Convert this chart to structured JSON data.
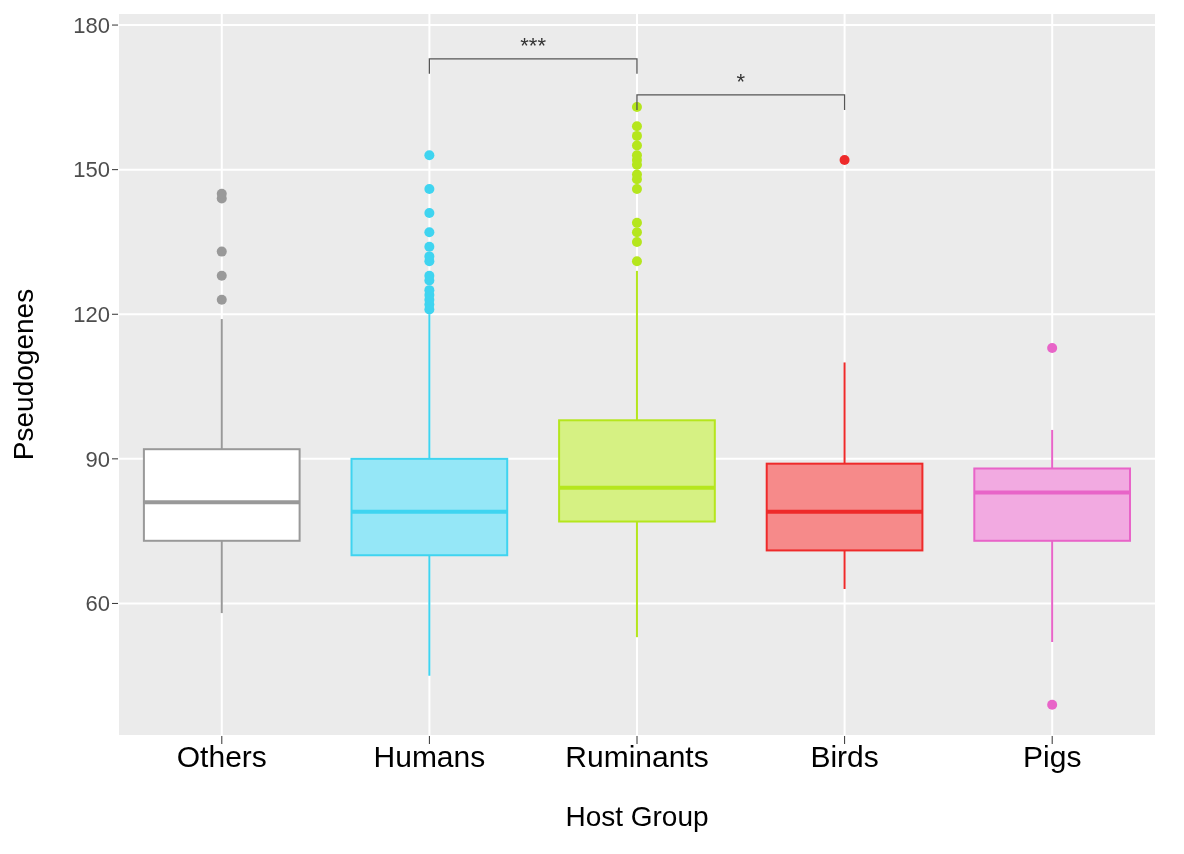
{
  "chart_data": {
    "type": "box",
    "xlabel": "Host Group",
    "ylabel": "Pseudogenes",
    "categories": [
      "Others",
      "Humans",
      "Ruminants",
      "Birds",
      "Pigs"
    ],
    "colors": [
      "#999999",
      "#3fd4f0",
      "#b5e61d",
      "#ee2a2a",
      "#e864c8"
    ],
    "boxes": [
      {
        "low": 58,
        "q1": 73,
        "median": 81,
        "q3": 92,
        "high": 119,
        "outliers": [
          123,
          128,
          133,
          144,
          145
        ]
      },
      {
        "low": 45,
        "q1": 70,
        "median": 79,
        "q3": 90,
        "high": 120,
        "outliers": [
          121,
          122,
          123,
          124,
          125,
          127,
          128,
          131,
          132,
          134,
          137,
          141,
          146,
          153
        ]
      },
      {
        "low": 53,
        "q1": 77,
        "median": 84,
        "q3": 98,
        "high": 129,
        "outliers": [
          131,
          135,
          137,
          139,
          146,
          148,
          149,
          151,
          152,
          153,
          155,
          157,
          159,
          163
        ]
      },
      {
        "low": 63,
        "q1": 71,
        "median": 79,
        "q3": 89,
        "high": 110,
        "outliers": [
          152
        ]
      },
      {
        "low": 52,
        "q1": 73,
        "median": 83,
        "q3": 88,
        "high": 96,
        "outliers": [
          39,
          113
        ]
      }
    ],
    "ylim": [
      32.5,
      182.5
    ],
    "yticks": [
      60,
      90,
      120,
      150,
      180
    ],
    "grid": true,
    "annotations": [
      "***",
      "*"
    ]
  }
}
